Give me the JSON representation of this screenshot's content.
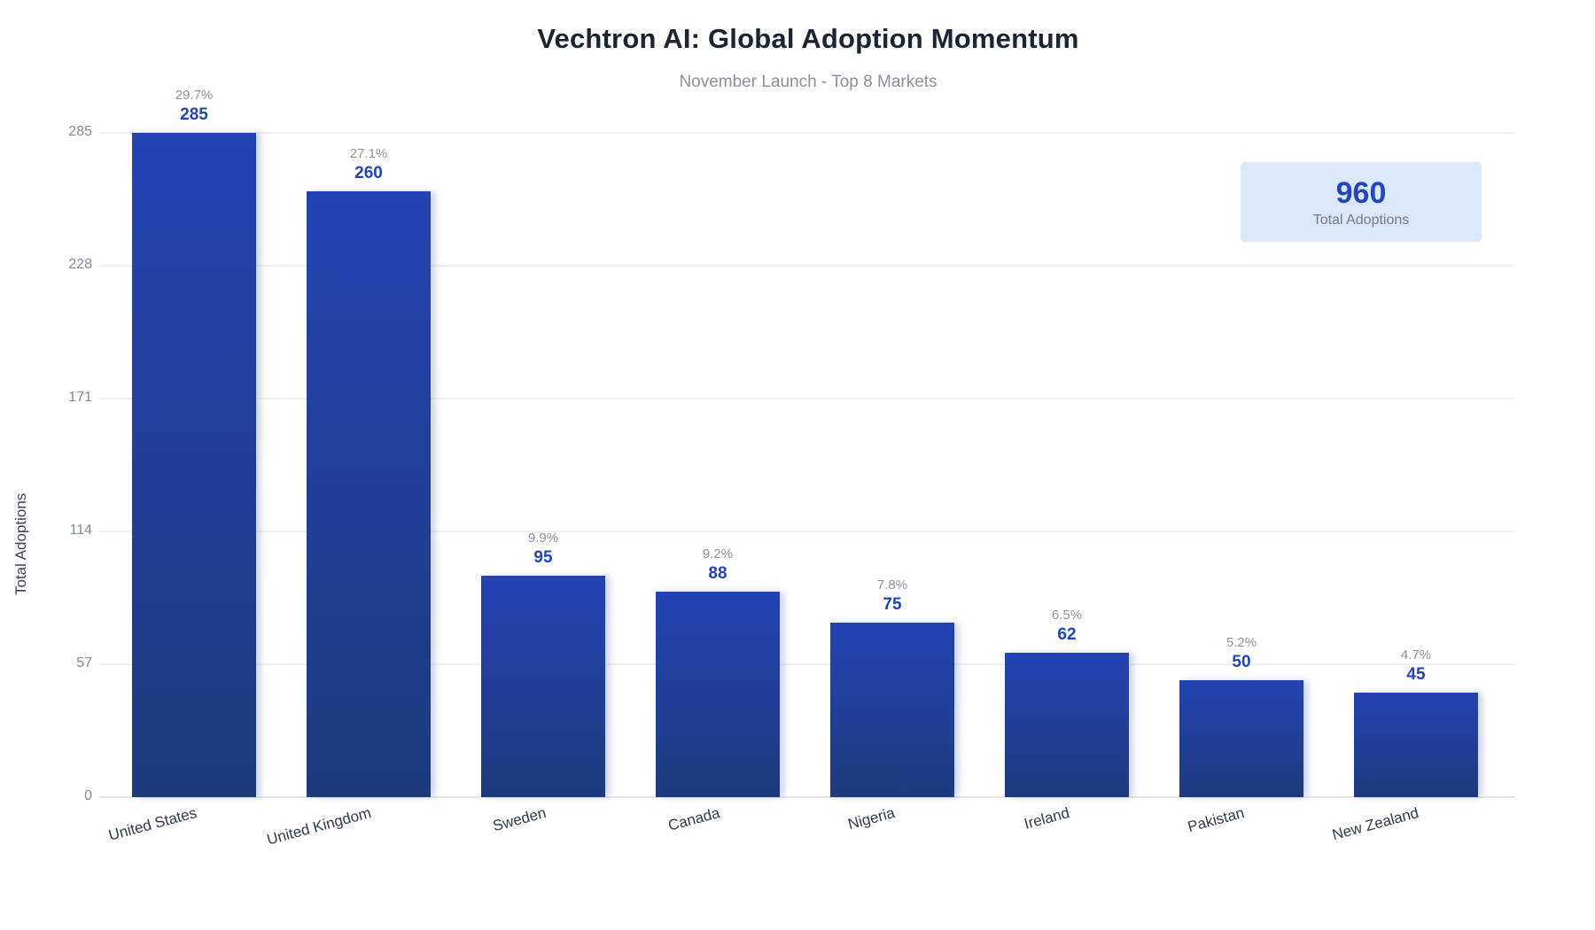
{
  "header": {
    "title": "Vechtron AI: Global Adoption Momentum",
    "subtitle": "November Launch - Top 8 Markets"
  },
  "total_box": {
    "value": "960",
    "label": "Total Adoptions"
  },
  "colors": {
    "bar_gradient_top": "#2343b4",
    "bar_gradient_bottom": "#1e3a7d",
    "value_label": "#2144c4",
    "percent_label": "#8d939e",
    "total_box_bg": "#dbe8fa",
    "total_value": "#2545c0",
    "grid_line": "#eef0f3",
    "title_text": "#1b2433",
    "subtitle_text": "#8b919c"
  },
  "chart_data": {
    "type": "bar",
    "title": "Vechtron AI: Global Adoption Momentum",
    "subtitle": "November Launch - Top 8 Markets",
    "xlabel": "",
    "ylabel": "Total Adoptions",
    "categories": [
      "United States",
      "United Kingdom",
      "Sweden",
      "Canada",
      "Nigeria",
      "Ireland",
      "Pakistan",
      "New Zealand"
    ],
    "values": [
      285,
      260,
      95,
      88,
      75,
      62,
      50,
      45
    ],
    "percent_labels": [
      "29.7%",
      "27.1%",
      "9.9%",
      "9.2%",
      "7.8%",
      "6.5%",
      "5.2%",
      "4.7%"
    ],
    "y_ticks": [
      0,
      57,
      114,
      171,
      228,
      285
    ],
    "ylim": [
      0,
      285
    ],
    "grid": true,
    "legend_position": "none",
    "total_adoptions": 960
  }
}
